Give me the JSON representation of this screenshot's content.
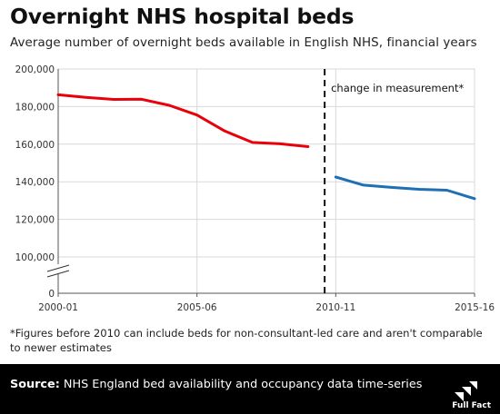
{
  "title": "Overnight NHS hospital beds",
  "subtitle": "Average number of overnight beds available in English NHS, financial years",
  "footnote": "*Figures before 2010 can include beds for non-consultant-led care and aren't comparable to newer estimates",
  "source": {
    "label": "Source:",
    "text": "NHS England bed availability and occupancy data time-series"
  },
  "logo": {
    "text": "Full Fact",
    "icon": "full-fact-logo"
  },
  "colors": {
    "series_before": "#e8000b",
    "series_after": "#1f6fb4",
    "source_bg": "#000000"
  },
  "chart_data": {
    "type": "line",
    "title": "Overnight NHS hospital beds",
    "subtitle": "Average number of overnight beds available in English NHS, financial years",
    "xlabel": "",
    "ylabel": "",
    "x_tick_labels": [
      "2000-01",
      "2005-06",
      "2010-11",
      "2015-16"
    ],
    "y_tick_labels": [
      "0",
      "100,000",
      "120,000",
      "140,000",
      "160,000",
      "180,000",
      "200,000"
    ],
    "ylim": [
      0,
      200000
    ],
    "y_axis_break": true,
    "grid": true,
    "annotation": "change in measurement*",
    "series": [
      {
        "x": [
          "2000-01",
          "2001-02",
          "2002-03",
          "2003-04",
          "2004-05",
          "2005-06",
          "2006-07",
          "2007-08",
          "2008-09",
          "2009-10"
        ],
        "values": [
          186300,
          184900,
          183800,
          183900,
          180700,
          175500,
          167000,
          160900,
          160200,
          158700
        ],
        "color": "#e8000b"
      },
      {
        "x": [
          "2010-11",
          "2011-12",
          "2012-13",
          "2013-14",
          "2014-15",
          "2015-16"
        ],
        "values": [
          142500,
          138200,
          137000,
          136000,
          135500,
          131000
        ],
        "color": "#1f6fb4"
      }
    ]
  }
}
